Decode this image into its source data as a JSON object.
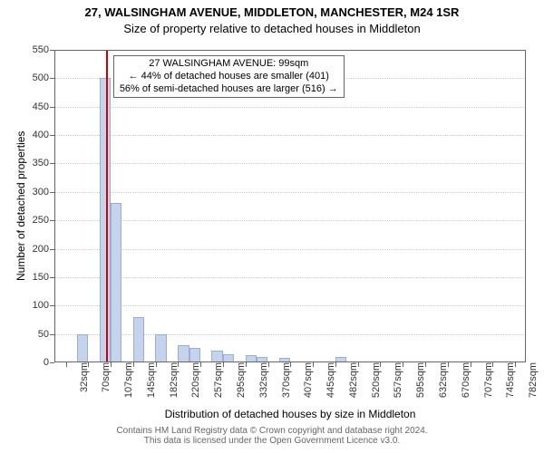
{
  "title_line1": "27, WALSINGHAM AVENUE, MIDDLETON, MANCHESTER, M24 1SR",
  "title_line2": "Size of property relative to detached houses in Middleton",
  "title_fontsize": 13,
  "yaxis_label": "Number of detached properties",
  "xaxis_label": "Distribution of detached houses by size in Middleton",
  "axis_label_fontsize": 12,
  "footer_text": "Contains HM Land Registry data © Crown copyright and database right 2024.\nThis data is licensed under the Open Government Licence v3.0.",
  "footer_fontsize": 10,
  "footer_color": "#666666",
  "annot_line1": "27 WALSINGHAM AVENUE: 99sqm",
  "annot_line2": "← 44% of detached houses are smaller (401)",
  "annot_line3": "56% of semi-detached houses are larger (516) →",
  "annot_fontsize": 11,
  "annot_border_color": "#666666",
  "annot_bg": "#ffffff",
  "chart": {
    "type": "histogram",
    "background_color": "#ffffff",
    "axis_color": "#666666",
    "grid_color": "#cccccc",
    "tick_fontsize": 11,
    "tick_color": "#333333",
    "xlim": [
      13,
      800
    ],
    "ylim": [
      0,
      550
    ],
    "ytick_step": 50,
    "xtick_start": 32,
    "xtick_step": 37.5,
    "xtick_count": 21,
    "xtick_suffix": "sqm",
    "bar_color": "#c5d4ec",
    "bar_border_color": "#99aed0",
    "bin_width": 18.75,
    "bins": [
      {
        "start": 13.0,
        "value": 0
      },
      {
        "start": 31.75,
        "value": 0
      },
      {
        "start": 50.5,
        "value": 50
      },
      {
        "start": 69.25,
        "value": 0
      },
      {
        "start": 88.0,
        "value": 500
      },
      {
        "start": 106.75,
        "value": 280
      },
      {
        "start": 125.5,
        "value": 0
      },
      {
        "start": 144.25,
        "value": 80
      },
      {
        "start": 163.0,
        "value": 0
      },
      {
        "start": 181.75,
        "value": 50
      },
      {
        "start": 200.5,
        "value": 0
      },
      {
        "start": 219.25,
        "value": 30
      },
      {
        "start": 238.0,
        "value": 25
      },
      {
        "start": 256.75,
        "value": 0
      },
      {
        "start": 275.5,
        "value": 20
      },
      {
        "start": 294.25,
        "value": 15
      },
      {
        "start": 313.0,
        "value": 0
      },
      {
        "start": 331.75,
        "value": 12
      },
      {
        "start": 350.5,
        "value": 10
      },
      {
        "start": 369.25,
        "value": 0
      },
      {
        "start": 388.0,
        "value": 8
      },
      {
        "start": 406.75,
        "value": 0
      },
      {
        "start": 425.5,
        "value": 0
      },
      {
        "start": 444.25,
        "value": 0
      },
      {
        "start": 463.0,
        "value": 0
      },
      {
        "start": 481.75,
        "value": 10
      },
      {
        "start": 500.5,
        "value": 0
      },
      {
        "start": 519.25,
        "value": 0
      },
      {
        "start": 538.0,
        "value": 0
      },
      {
        "start": 556.75,
        "value": 0
      },
      {
        "start": 575.5,
        "value": 0
      },
      {
        "start": 594.25,
        "value": 0
      },
      {
        "start": 613.0,
        "value": 0
      },
      {
        "start": 631.75,
        "value": 0
      },
      {
        "start": 650.5,
        "value": 0
      },
      {
        "start": 669.25,
        "value": 0
      },
      {
        "start": 688.0,
        "value": 0
      },
      {
        "start": 706.75,
        "value": 0
      },
      {
        "start": 725.5,
        "value": 0
      },
      {
        "start": 744.25,
        "value": 0
      },
      {
        "start": 763.0,
        "value": 0
      },
      {
        "start": 781.75,
        "value": 0
      }
    ],
    "marker_x": 99,
    "marker_color": "#cc0000",
    "marker_width": 2
  }
}
